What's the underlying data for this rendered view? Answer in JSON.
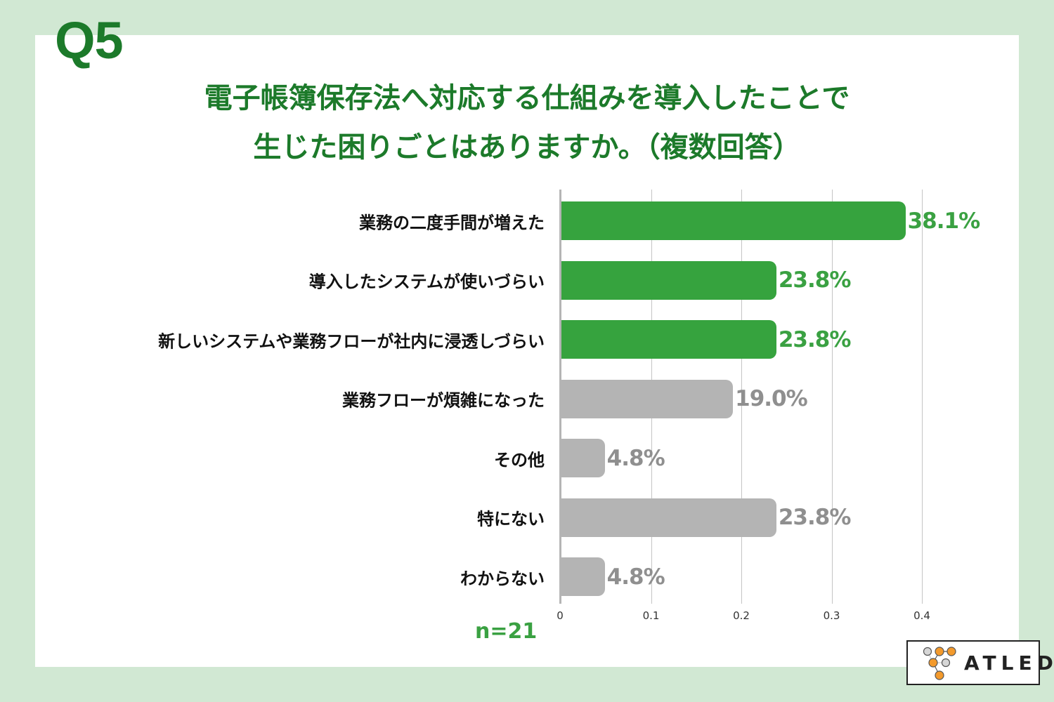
{
  "header": {
    "question_number": "Q5",
    "title_line1": "電子帳簿保存法へ対応する仕組みを導入したことで",
    "title_line2": "生じた困りごとはありますか。（複数回答）"
  },
  "footer": {
    "sample_size": "n=21",
    "logo_text": "ATLED"
  },
  "colors": {
    "background": "#d1e8d3",
    "title_green": "#1c7a2a",
    "highlight_bar": "#36a33e",
    "highlight_label": "#3aa142",
    "muted_bar": "#b4b4b4",
    "muted_label": "#8f8f8f"
  },
  "chart_data": {
    "type": "bar",
    "orientation": "horizontal",
    "title": "電子帳簿保存法へ対応する仕組みを導入したことで生じた困りごとはありますか。（複数回答）",
    "xlabel": "",
    "ylabel": "",
    "xlim": [
      0,
      0.4
    ],
    "grid": true,
    "x_ticks": [
      "0",
      "0.1",
      "0.2",
      "0.3",
      "0.4"
    ],
    "categories": [
      "業務の二度手間が増えた",
      "導入したシステムが使いづらい",
      "新しいシステムや業務フローが社内に浸透しづらい",
      "業務フローが煩雑になった",
      "その他",
      "特にない",
      "わからない"
    ],
    "values": [
      0.381,
      0.238,
      0.238,
      0.19,
      0.048,
      0.238,
      0.048
    ],
    "value_labels": [
      "38.1%",
      "23.8%",
      "23.8%",
      "19.0%",
      "4.8%",
      "23.8%",
      "4.8%"
    ],
    "highlighted": [
      true,
      true,
      true,
      false,
      false,
      false,
      false
    ],
    "n": 21
  }
}
